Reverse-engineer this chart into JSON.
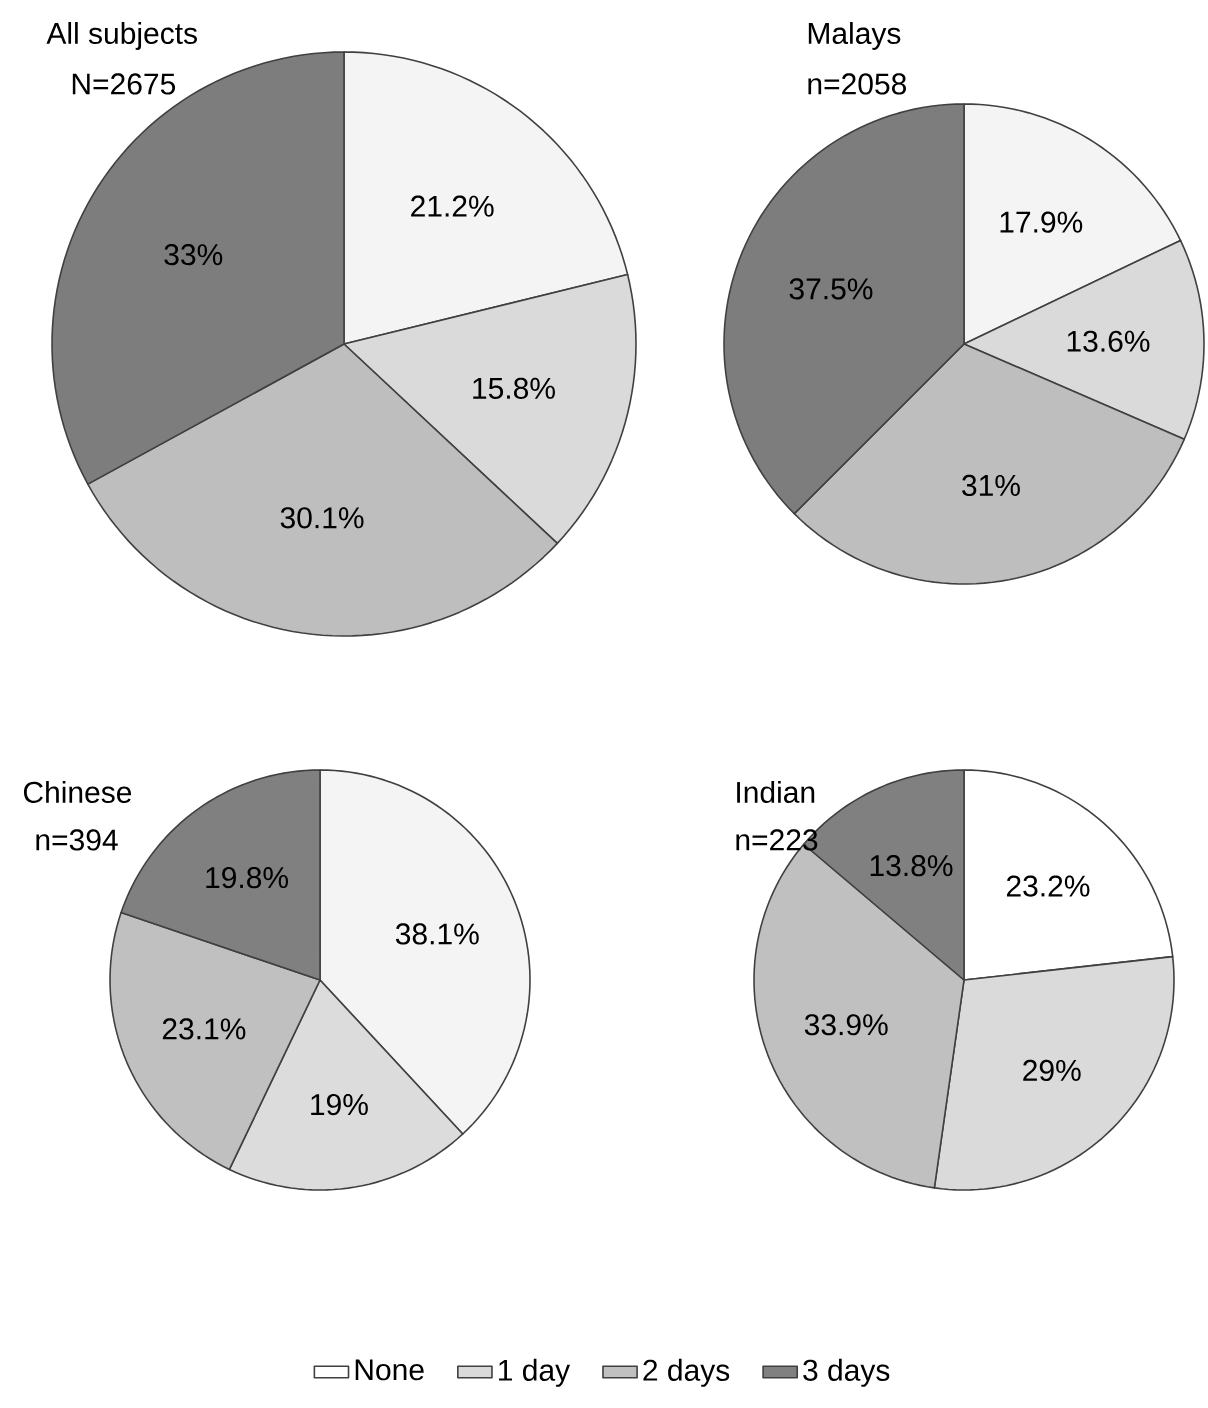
{
  "chart_data": [
    {
      "type": "pie",
      "title": "All subjects",
      "subtitle": "N=2675",
      "categories": [
        null,
        null,
        null,
        null
      ],
      "values": [
        21.2,
        15.8,
        30.1,
        33
      ],
      "value_labels": [
        "21.2%",
        "15.8%",
        "30.1%",
        "33%"
      ],
      "colors": [
        "#f4f4f4",
        "#dadada",
        "#bebebe",
        "#7d7d7d"
      ]
    },
    {
      "type": "pie",
      "title": "Malays",
      "subtitle": "n=2058",
      "categories": [
        null,
        null,
        null,
        null
      ],
      "values": [
        17.9,
        13.6,
        31,
        37.5
      ],
      "value_labels": [
        "17.9%",
        "13.6%",
        "31%",
        "37.5%"
      ],
      "colors": [
        "#f4f4f4",
        "#dadada",
        "#bebebe",
        "#7d7d7d"
      ]
    },
    {
      "type": "pie",
      "title": "Chinese",
      "subtitle": "n=394",
      "categories": [
        null,
        null,
        null,
        null
      ],
      "values": [
        38.1,
        19,
        23.1,
        19.8
      ],
      "value_labels": [
        "38.1%",
        "19%",
        "23.1%",
        "19.8%"
      ],
      "colors": [
        "#f4f4f4",
        "#dcdcdc",
        "#c0c0c0",
        "#808080"
      ]
    },
    {
      "type": "pie",
      "title": "Indian",
      "subtitle": "n=223",
      "categories": [
        "None",
        "1 day",
        "2 days",
        "3 days"
      ],
      "values": [
        23.2,
        29,
        33.9,
        13.8
      ],
      "value_labels": [
        "23.2%",
        "29%",
        "33.9%",
        "13.8%"
      ],
      "colors": [
        "#ffffff",
        "#dadada",
        "#c0c0c0",
        "#808080"
      ],
      "legend": "bottom"
    }
  ]
}
